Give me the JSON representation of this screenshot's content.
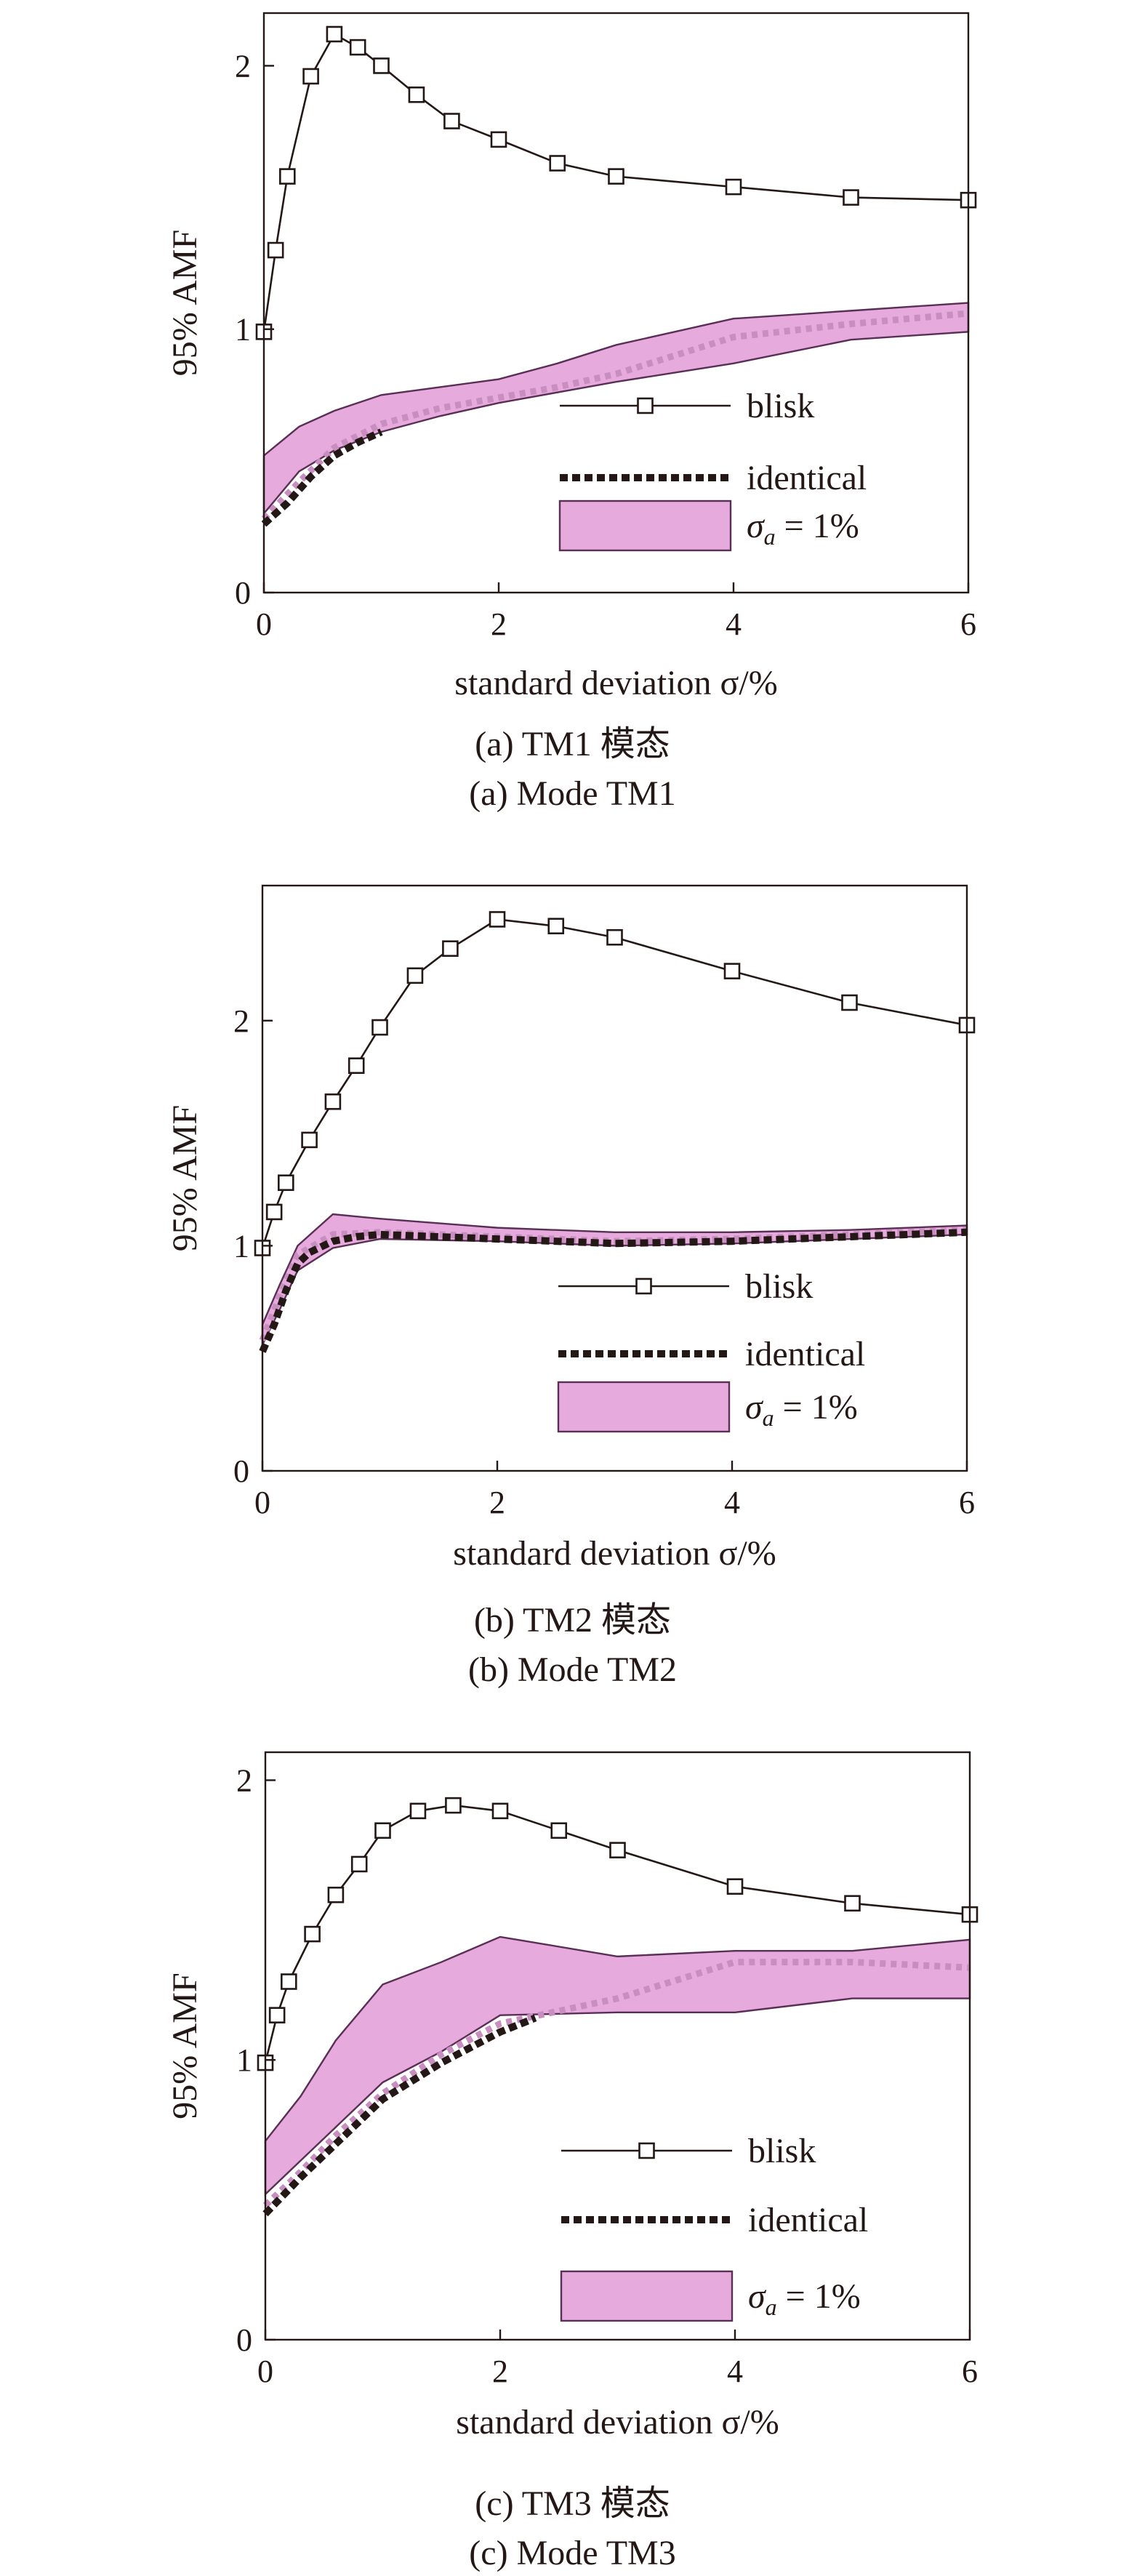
{
  "chart_data": [
    {
      "type": "line",
      "id": "a",
      "caption_cn": "(a) TM1 模态",
      "caption_en": "(a) Mode TM1",
      "xlabel": "standard deviation σ/%",
      "ylabel": "95% AMF",
      "xlim": [
        0,
        6
      ],
      "ylim": [
        0,
        2.2
      ],
      "xticks": [
        0,
        2,
        4,
        6
      ],
      "yticks": [
        0,
        1,
        2
      ],
      "grid": false,
      "legend_position": "bottom-right",
      "legend": {
        "blisk": "blisk",
        "identical": "identical",
        "sigma_a": "σ",
        "sigma_sub": "a",
        "sigma_value": " = 1%"
      },
      "series": [
        {
          "name": "blisk",
          "x": [
            0,
            0.1,
            0.2,
            0.4,
            0.6,
            0.8,
            1.0,
            1.3,
            1.6,
            2.0,
            2.5,
            3.0,
            4.0,
            5.0,
            6.0
          ],
          "y": [
            0.99,
            1.3,
            1.58,
            1.96,
            2.12,
            2.07,
            2.0,
            1.89,
            1.79,
            1.72,
            1.63,
            1.58,
            1.54,
            1.5,
            1.49
          ]
        },
        {
          "name": "identical",
          "x": [
            0,
            0.2,
            0.4,
            0.6,
            0.8,
            1.0
          ],
          "y": [
            0.26,
            0.34,
            0.44,
            0.52,
            0.57,
            0.61
          ]
        },
        {
          "name": "σa = 1%",
          "kind": "band",
          "x": [
            0,
            0.3,
            0.6,
            1.0,
            1.5,
            2.0,
            2.5,
            3.0,
            4.0,
            5.0,
            6.0
          ],
          "lower": [
            0.3,
            0.46,
            0.54,
            0.61,
            0.67,
            0.72,
            0.76,
            0.8,
            0.87,
            0.96,
            0.99
          ],
          "upper": [
            0.52,
            0.63,
            0.69,
            0.75,
            0.78,
            0.81,
            0.87,
            0.94,
            1.04,
            1.07,
            1.1
          ],
          "mean": [
            0.28,
            0.42,
            0.55,
            0.64,
            0.7,
            0.74,
            0.78,
            0.83,
            0.97,
            1.02,
            1.06
          ]
        }
      ]
    },
    {
      "type": "line",
      "id": "b",
      "caption_cn": "(b) TM2 模态",
      "caption_en": "(b) Mode TM2",
      "xlabel": "standard deviation σ/%",
      "ylabel": "95% AMF",
      "xlim": [
        0,
        6
      ],
      "ylim": [
        0,
        2.6
      ],
      "xticks": [
        0,
        2,
        4,
        6
      ],
      "yticks": [
        0,
        1,
        2
      ],
      "grid": false,
      "legend_position": "bottom-right",
      "legend": {
        "blisk": "blisk",
        "identical": "identical",
        "sigma_a": "σ",
        "sigma_sub": "a",
        "sigma_value": " = 1%"
      },
      "series": [
        {
          "name": "blisk",
          "x": [
            0,
            0.1,
            0.2,
            0.4,
            0.6,
            0.8,
            1.0,
            1.3,
            1.6,
            2.0,
            2.5,
            3.0,
            4.0,
            5.0,
            6.0
          ],
          "y": [
            0.99,
            1.15,
            1.28,
            1.47,
            1.64,
            1.8,
            1.97,
            2.2,
            2.32,
            2.45,
            2.42,
            2.37,
            2.22,
            2.08,
            1.98
          ]
        },
        {
          "name": "identical",
          "x": [
            0,
            0.1,
            0.2,
            0.3,
            0.4,
            0.6,
            0.8,
            1.0,
            1.5,
            2.0,
            3.0,
            4.0,
            5.0,
            6.0
          ],
          "y": [
            0.53,
            0.65,
            0.8,
            0.92,
            0.97,
            1.02,
            1.04,
            1.05,
            1.04,
            1.03,
            1.01,
            1.02,
            1.04,
            1.06
          ]
        },
        {
          "name": "σa = 1%",
          "kind": "band",
          "x": [
            0,
            0.15,
            0.3,
            0.6,
            1.0,
            2.0,
            3.0,
            4.0,
            5.0,
            6.0
          ],
          "lower": [
            0.56,
            0.72,
            0.89,
            0.99,
            1.03,
            1.02,
            1.0,
            1.01,
            1.03,
            1.05
          ],
          "upper": [
            0.65,
            0.83,
            1.0,
            1.14,
            1.12,
            1.08,
            1.06,
            1.06,
            1.07,
            1.09
          ],
          "mean": [
            0.58,
            0.78,
            0.96,
            1.05,
            1.06,
            1.04,
            1.02,
            1.03,
            1.05,
            1.07
          ]
        }
      ]
    },
    {
      "type": "line",
      "id": "c",
      "caption_cn": "(c) TM3 模态",
      "caption_en": "(c) Mode TM3",
      "xlabel": "standard deviation σ/%",
      "ylabel": "95% AMF",
      "xlim": [
        0,
        6
      ],
      "ylim": [
        0,
        2.1
      ],
      "xticks": [
        0,
        2,
        4,
        6
      ],
      "yticks": [
        0,
        1,
        2
      ],
      "grid": false,
      "legend_position": "bottom-right",
      "legend": {
        "blisk": "blisk",
        "identical": "identical",
        "sigma_a": "σ",
        "sigma_sub": "a",
        "sigma_value": " = 1%"
      },
      "series": [
        {
          "name": "blisk",
          "x": [
            0,
            0.1,
            0.2,
            0.4,
            0.6,
            0.8,
            1.0,
            1.3,
            1.6,
            2.0,
            2.5,
            3.0,
            4.0,
            5.0,
            6.0
          ],
          "y": [
            0.99,
            1.16,
            1.28,
            1.45,
            1.59,
            1.7,
            1.82,
            1.89,
            1.91,
            1.89,
            1.82,
            1.75,
            1.62,
            1.56,
            1.52
          ]
        },
        {
          "name": "identical",
          "x": [
            0,
            0.3,
            0.6,
            1.0,
            1.5,
            2.0,
            2.3
          ],
          "y": [
            0.45,
            0.58,
            0.7,
            0.86,
            0.99,
            1.1,
            1.15
          ]
        },
        {
          "name": "σa = 1%",
          "kind": "band",
          "x": [
            0,
            0.3,
            0.6,
            1.0,
            1.5,
            2.0,
            3.0,
            4.0,
            5.0,
            6.0
          ],
          "lower": [
            0.52,
            0.64,
            0.76,
            0.92,
            1.03,
            1.16,
            1.17,
            1.17,
            1.22,
            1.22
          ],
          "upper": [
            0.71,
            0.87,
            1.07,
            1.27,
            1.35,
            1.44,
            1.37,
            1.39,
            1.39,
            1.43
          ],
          "mean": [
            0.48,
            0.6,
            0.73,
            0.88,
            1.02,
            1.13,
            1.22,
            1.35,
            1.35,
            1.33
          ]
        }
      ]
    }
  ]
}
